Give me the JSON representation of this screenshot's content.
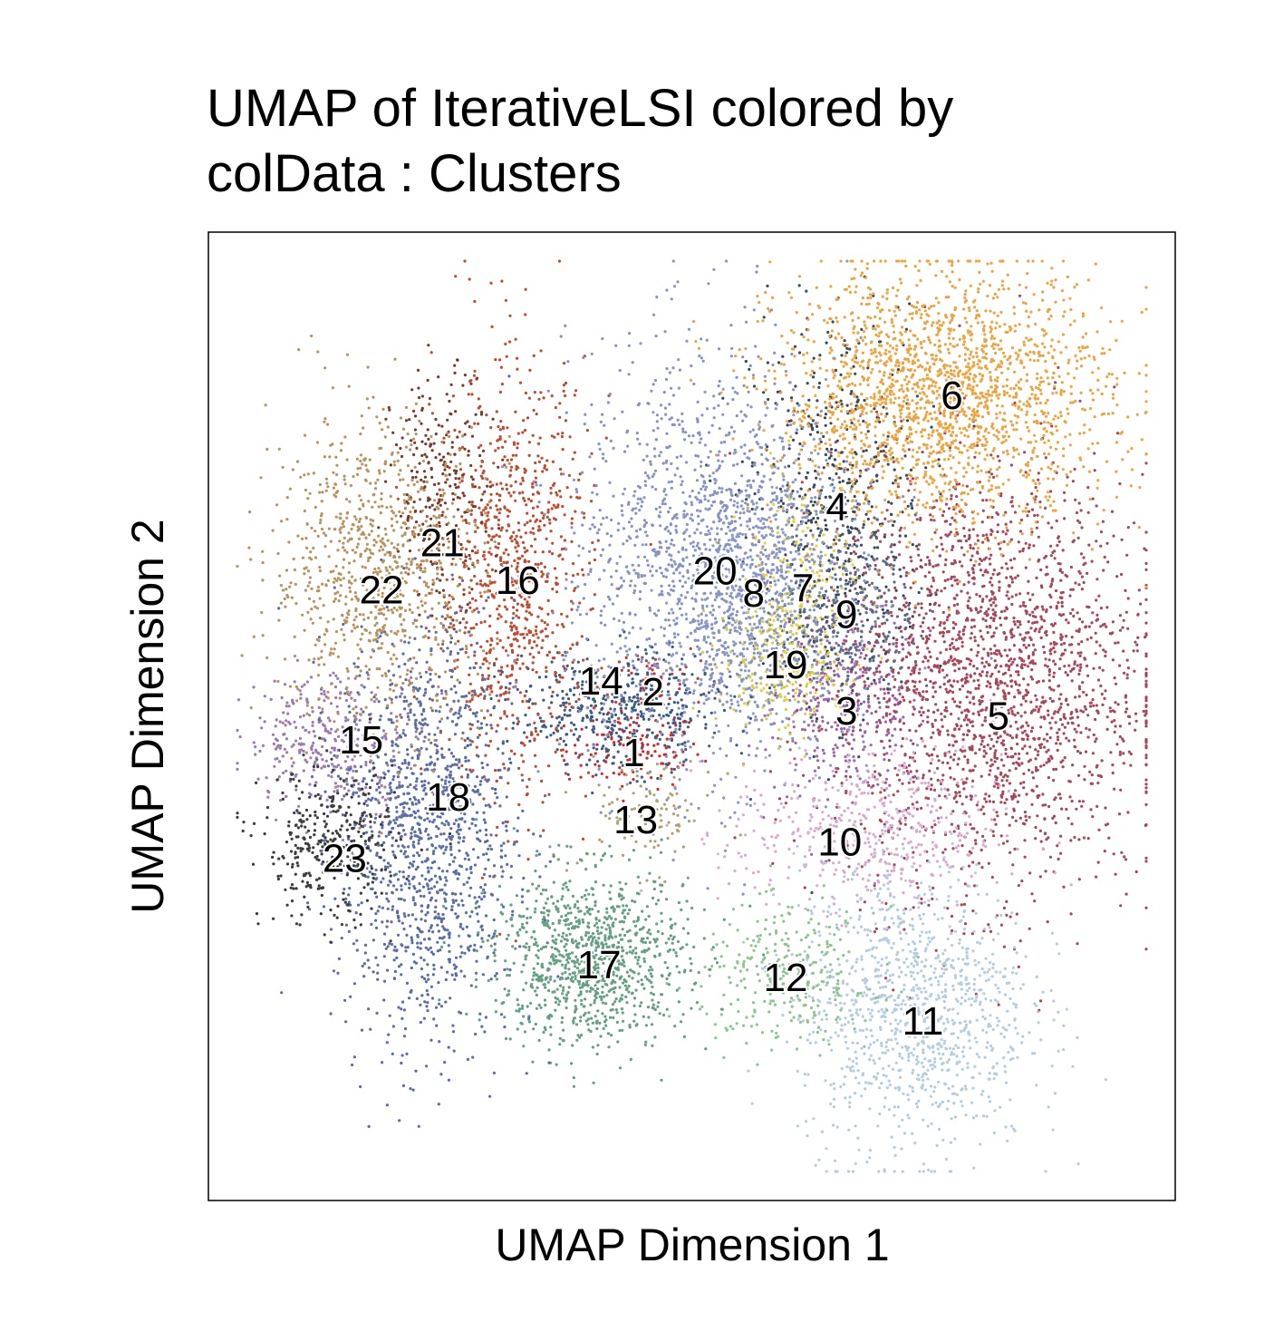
{
  "chart_data": {
    "type": "scatter",
    "title": "UMAP of IterativeLSI  colored by\ncolData :  Clusters",
    "xlabel": "UMAP Dimension 1",
    "ylabel": "UMAP Dimension 2",
    "xlim": [
      0,
      100
    ],
    "ylim": [
      0,
      100
    ],
    "grid": false,
    "legend": "none",
    "clusters": [
      {
        "name": "1",
        "color": "#d62728",
        "center": [
          44.0,
          46.5
        ],
        "spread": [
          3.5,
          2.0
        ],
        "n": 130
      },
      {
        "name": "2",
        "color": "#c0393c",
        "center": [
          45.5,
          54.0
        ],
        "spread": [
          3.0,
          2.0
        ],
        "n": 60
      },
      {
        "name": "3",
        "color": "#a064a8",
        "center": [
          66.5,
          51.0
        ],
        "spread": [
          4.0,
          4.5
        ],
        "n": 320
      },
      {
        "name": "4",
        "color": "#3a4a5a",
        "center": [
          65.0,
          72.0
        ],
        "spread": [
          4.5,
          10.0
        ],
        "n": 520
      },
      {
        "name": "5",
        "color": "#a8475a",
        "center": [
          81.0,
          54.0
        ],
        "spread": [
          8.0,
          11.0
        ],
        "n": 2200
      },
      {
        "name": "6",
        "color": "#eda441",
        "center": [
          76.0,
          83.0
        ],
        "spread": [
          8.5,
          6.5
        ],
        "n": 2000
      },
      {
        "name": "7",
        "color": "#e8d23c",
        "center": [
          61.5,
          63.0
        ],
        "spread": [
          3.0,
          6.0
        ],
        "n": 220
      },
      {
        "name": "8",
        "color": "#8e9bc9",
        "center": [
          56.5,
          63.0
        ],
        "spread": [
          5.0,
          8.0
        ],
        "n": 700
      },
      {
        "name": "9",
        "color": "#5a6a8a",
        "center": [
          66.0,
          61.0
        ],
        "spread": [
          3.5,
          4.5
        ],
        "n": 320
      },
      {
        "name": "10",
        "color": "#d9a9d0",
        "center": [
          68.0,
          38.0
        ],
        "spread": [
          7.0,
          4.0
        ],
        "n": 450
      },
      {
        "name": "11",
        "color": "#b5cde0",
        "center": [
          73.0,
          20.0
        ],
        "spread": [
          6.0,
          7.5
        ],
        "n": 1100
      },
      {
        "name": "12",
        "color": "#8cc58f",
        "center": [
          60.0,
          23.0
        ],
        "spread": [
          4.5,
          3.5
        ],
        "n": 300
      },
      {
        "name": "13",
        "color": "#b0a274",
        "center": [
          45.5,
          40.0
        ],
        "spread": [
          3.5,
          3.0
        ],
        "n": 110
      },
      {
        "name": "14",
        "color": "#3b5b84",
        "center": [
          42.0,
          50.5
        ],
        "spread": [
          5.5,
          3.0
        ],
        "n": 450
      },
      {
        "name": "15",
        "color": "#9b7bb2",
        "center": [
          13.0,
          47.5
        ],
        "spread": [
          4.5,
          3.5
        ],
        "n": 350
      },
      {
        "name": "16",
        "color": "#c14b2f",
        "center": [
          31.5,
          64.0
        ],
        "spread": [
          4.0,
          11.0
        ],
        "n": 900
      },
      {
        "name": "17",
        "color": "#64a083",
        "center": [
          39.5,
          25.0
        ],
        "spread": [
          5.0,
          4.5
        ],
        "n": 1000
      },
      {
        "name": "18",
        "color": "#5a6da6",
        "center": [
          22.5,
          38.0
        ],
        "spread": [
          4.5,
          11.0
        ],
        "n": 1300
      },
      {
        "name": "19",
        "color": "#d8cc4c",
        "center": [
          58.5,
          55.5
        ],
        "spread": [
          3.0,
          3.5
        ],
        "n": 180
      },
      {
        "name": "20",
        "color": "#8693c4",
        "center": [
          51.0,
          66.0
        ],
        "spread": [
          7.0,
          11.0
        ],
        "n": 1300
      },
      {
        "name": "21",
        "color": "#7a3a2a",
        "center": [
          24.0,
          73.5
        ],
        "spread": [
          2.5,
          6.0
        ],
        "n": 250
      },
      {
        "name": "22",
        "color": "#b8935f",
        "center": [
          17.5,
          65.0
        ],
        "spread": [
          5.5,
          8.0
        ],
        "n": 900
      },
      {
        "name": "23",
        "color": "#3c3c3c",
        "center": [
          12.5,
          36.5
        ],
        "spread": [
          3.5,
          4.0
        ],
        "n": 350
      }
    ],
    "cluster_labels": [
      {
        "text": "1",
        "x": 44.0,
        "y": 46.2
      },
      {
        "text": "2",
        "x": 46.0,
        "y": 52.5
      },
      {
        "text": "3",
        "x": 66.0,
        "y": 50.5
      },
      {
        "text": "4",
        "x": 65.0,
        "y": 71.6
      },
      {
        "text": "5",
        "x": 81.7,
        "y": 50.0
      },
      {
        "text": "6",
        "x": 76.9,
        "y": 83.1
      },
      {
        "text": "7",
        "x": 61.5,
        "y": 63.2
      },
      {
        "text": "8",
        "x": 56.4,
        "y": 62.7
      },
      {
        "text": "9",
        "x": 66.0,
        "y": 60.5
      },
      {
        "text": "10",
        "x": 65.3,
        "y": 37.0
      },
      {
        "text": "11",
        "x": 73.9,
        "y": 18.5
      },
      {
        "text": "12",
        "x": 59.7,
        "y": 23.0
      },
      {
        "text": "13",
        "x": 44.2,
        "y": 39.3
      },
      {
        "text": "14",
        "x": 40.6,
        "y": 53.6
      },
      {
        "text": "15",
        "x": 15.8,
        "y": 47.5
      },
      {
        "text": "16",
        "x": 32.0,
        "y": 64.0
      },
      {
        "text": "17",
        "x": 40.4,
        "y": 24.3
      },
      {
        "text": "18",
        "x": 24.8,
        "y": 41.6
      },
      {
        "text": "19",
        "x": 59.7,
        "y": 55.3
      },
      {
        "text": "20",
        "x": 52.4,
        "y": 65.0
      },
      {
        "text": "21",
        "x": 24.2,
        "y": 67.9
      },
      {
        "text": "22",
        "x": 17.9,
        "y": 63.0
      },
      {
        "text": "23",
        "x": 14.1,
        "y": 35.3
      }
    ]
  }
}
